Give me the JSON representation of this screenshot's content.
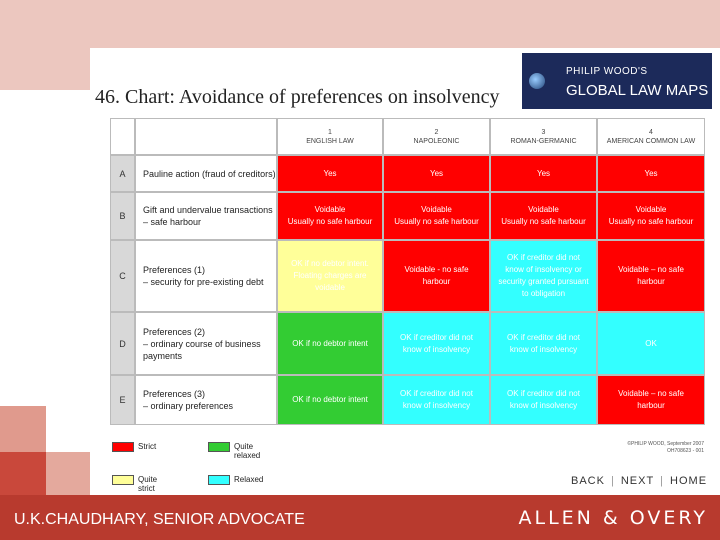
{
  "header": {
    "title": "46. Chart: Avoidance of preferences on insolvency",
    "logo": [
      "PHILIP WOOD'S",
      "GLOBAL LAW MAPS"
    ]
  },
  "table": {
    "columns": [
      {
        "number": "1",
        "name": "ENGLISH LAW"
      },
      {
        "number": "2",
        "name": "NAPOLEONIC"
      },
      {
        "number": "3",
        "name": "ROMAN-GERMANIC"
      },
      {
        "number": "4",
        "name": "AMERICAN COMMON LAW"
      }
    ],
    "rows": [
      {
        "letter": "A",
        "label": [
          "Pauline action (fraud of creditors)"
        ],
        "cells": [
          {
            "lines": [
              "Yes"
            ],
            "color": "#ff0000"
          },
          {
            "lines": [
              "Yes"
            ],
            "color": "#ff0000"
          },
          {
            "lines": [
              "Yes"
            ],
            "color": "#ff0000"
          },
          {
            "lines": [
              "Yes"
            ],
            "color": "#ff0000"
          }
        ]
      },
      {
        "letter": "B",
        "label": [
          "Gift and undervalue transactions",
          "– safe harbour"
        ],
        "cells": [
          {
            "lines": [
              "Voidable",
              "Usually no safe harbour"
            ],
            "color": "#ff0000"
          },
          {
            "lines": [
              "Voidable",
              "Usually no safe harbour"
            ],
            "color": "#ff0000"
          },
          {
            "lines": [
              "Voidable",
              "Usually no safe harbour"
            ],
            "color": "#ff0000"
          },
          {
            "lines": [
              "Voidable",
              "Usually no safe harbour"
            ],
            "color": "#ff0000"
          }
        ]
      },
      {
        "letter": "C",
        "label": [
          "Preferences (1)",
          "– security for pre-existing debt"
        ],
        "cells": [
          {
            "lines": [
              "OK if no debtor intent.",
              "Floating charges are",
              "voidable"
            ],
            "color": "#ffff99"
          },
          {
            "lines": [
              "Voidable - no safe",
              "harbour"
            ],
            "color": "#ff0000"
          },
          {
            "lines": [
              "OK if creditor did not",
              "know of insolvency or",
              "security granted pursuant",
              "to obligation"
            ],
            "color": "#33ffff"
          },
          {
            "lines": [
              "Voidable – no safe",
              "harbour"
            ],
            "color": "#ff0000"
          }
        ]
      },
      {
        "letter": "D",
        "label": [
          "Preferences (2)",
          "– ordinary course of business",
          "payments"
        ],
        "cells": [
          {
            "lines": [
              "OK if no debtor intent"
            ],
            "color": "#33cc33"
          },
          {
            "lines": [
              "OK if creditor did not",
              "know of insolvency"
            ],
            "color": "#33ffff"
          },
          {
            "lines": [
              "OK if creditor did not",
              "know of insolvency"
            ],
            "color": "#33ffff"
          },
          {
            "lines": [
              "OK"
            ],
            "color": "#33ffff"
          }
        ]
      },
      {
        "letter": "E",
        "label": [
          "Preferences (3)",
          "– ordinary preferences"
        ],
        "cells": [
          {
            "lines": [
              "OK if no debtor intent"
            ],
            "color": "#33cc33"
          },
          {
            "lines": [
              "OK if creditor did not",
              "know of insolvency"
            ],
            "color": "#33ffff"
          },
          {
            "lines": [
              "OK if creditor did not",
              "know of insolvency"
            ],
            "color": "#33ffff"
          },
          {
            "lines": [
              "Voidable – no safe",
              "harbour"
            ],
            "color": "#ff0000"
          }
        ]
      }
    ]
  },
  "legend": [
    {
      "label": "Strict",
      "color": "#ff0000"
    },
    {
      "label": "Quite relaxed",
      "color": "#33cc33"
    },
    {
      "label": "Quite strict",
      "color": "#ffff99"
    },
    {
      "label": "Relaxed",
      "color": "#33ffff"
    }
  ],
  "copyright": [
    "©PHILIP WOOD, September 2007",
    "OH708623 - 001"
  ],
  "nav": [
    "BACK",
    "NEXT",
    "HOME"
  ],
  "footer": {
    "presenter": "U.K.CHAUDHARY, SENIOR ADVOCATE",
    "firm": "ALLEN & OVERY"
  }
}
